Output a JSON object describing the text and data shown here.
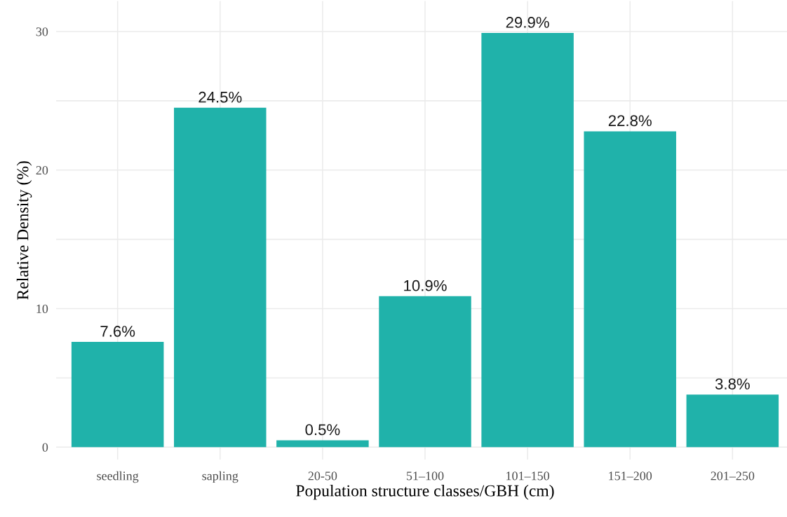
{
  "chart_data": {
    "type": "bar",
    "xlabel": "Population structure classes/GBH (cm)",
    "ylabel": "Relative Density (%)",
    "categories": [
      "seedling",
      "sapling",
      "20-50",
      "51–100",
      "101–150",
      "151–200",
      "201–250"
    ],
    "values": [
      7.6,
      24.5,
      0.5,
      10.9,
      29.9,
      22.8,
      3.8
    ],
    "value_labels": [
      "7.6%",
      "24.5%",
      "0.5%",
      "10.9%",
      "29.9%",
      "22.8%",
      "3.8%"
    ],
    "color": "#20b2aa",
    "ylim": [
      -0.9,
      32.2
    ],
    "yticks": [
      0,
      {
        "value": 5,
        "label": null
      },
      10,
      {
        "value": 15,
        "label": null
      },
      20,
      {
        "value": 25,
        "label": null
      },
      30
    ],
    "grid": true,
    "legend": false
  }
}
